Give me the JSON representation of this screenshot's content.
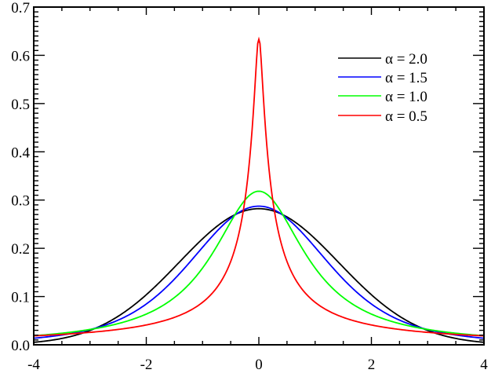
{
  "chart_data": {
    "type": "line",
    "title": "",
    "xlabel": "",
    "ylabel": "",
    "xlim": [
      -4,
      4
    ],
    "ylim": [
      0,
      0.7
    ],
    "grid": false,
    "legend_position": "upper right",
    "x_ticks": [
      -4,
      -2,
      0,
      2,
      4
    ],
    "x_tick_labels": [
      "-4",
      "-2",
      "0",
      "2",
      "4"
    ],
    "x_minor_step": 0.5,
    "y_ticks": [
      0.0,
      0.1,
      0.2,
      0.3,
      0.4,
      0.5,
      0.6,
      0.7
    ],
    "y_tick_labels": [
      "0.0",
      "0.1",
      "0.2",
      "0.3",
      "0.4",
      "0.5",
      "0.6",
      "0.7"
    ],
    "y_minor_step": 0.01,
    "x": [
      -4,
      -3.5,
      -3,
      -2.5,
      -2,
      -1.5,
      -1,
      -0.5,
      -0.25,
      0,
      0.25,
      0.5,
      1,
      1.5,
      2,
      2.5,
      3,
      3.5,
      4
    ],
    "series": [
      {
        "name": "α = 2.0",
        "alpha": 2.0,
        "color": "#000000",
        "values": [
          0.005,
          0.013,
          0.03,
          0.06,
          0.104,
          0.16,
          0.22,
          0.265,
          0.278,
          0.282,
          0.278,
          0.265,
          0.22,
          0.16,
          0.104,
          0.06,
          0.03,
          0.013,
          0.005
        ]
      },
      {
        "name": "α = 1.5",
        "alpha": 1.5,
        "color": "#0000ff",
        "values": [
          0.011,
          0.018,
          0.031,
          0.053,
          0.09,
          0.145,
          0.213,
          0.266,
          0.281,
          0.287,
          0.281,
          0.266,
          0.213,
          0.145,
          0.09,
          0.053,
          0.031,
          0.018,
          0.011
        ]
      },
      {
        "name": "α = 1.0",
        "alpha": 1.0,
        "color": "#00ff00",
        "values": [
          0.019,
          0.024,
          0.032,
          0.044,
          0.064,
          0.098,
          0.159,
          0.255,
          0.3,
          0.318,
          0.3,
          0.255,
          0.159,
          0.098,
          0.064,
          0.044,
          0.032,
          0.024,
          0.019
        ]
      },
      {
        "name": "α = 0.5",
        "alpha": 0.5,
        "color": "#ff0000",
        "values": [
          0.013,
          0.016,
          0.02,
          0.026,
          0.035,
          0.05,
          0.08,
          0.15,
          0.25,
          0.67,
          0.25,
          0.15,
          0.08,
          0.05,
          0.035,
          0.026,
          0.02,
          0.016,
          0.013
        ]
      }
    ]
  },
  "legend": {
    "items": [
      {
        "label": "α = 2.0",
        "color": "#000000"
      },
      {
        "label": "α = 1.5",
        "color": "#0000ff"
      },
      {
        "label": "α = 1.0",
        "color": "#00ff00"
      },
      {
        "label": "α = 0.5",
        "color": "#ff0000"
      }
    ]
  }
}
